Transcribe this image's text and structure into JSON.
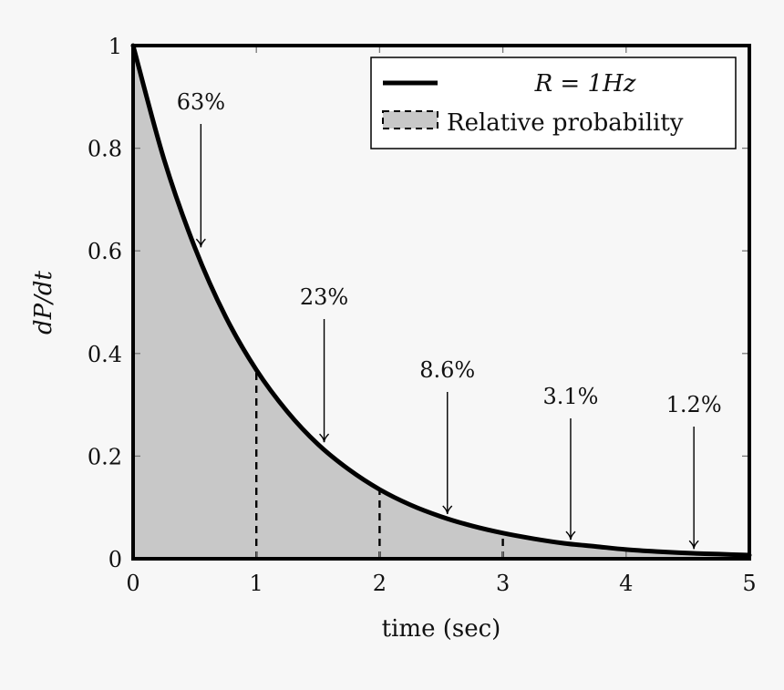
{
  "chart_data": {
    "type": "area",
    "title": "",
    "xlabel": "time (sec)",
    "ylabel": "dP/dt",
    "xlim": [
      0,
      5
    ],
    "ylim": [
      0,
      1
    ],
    "x_ticks": [
      "0",
      "1",
      "2",
      "3",
      "4",
      "5"
    ],
    "y_ticks": [
      "0",
      "0.2",
      "0.4",
      "0.6",
      "0.8",
      "1"
    ],
    "grid": false,
    "legend_position": "top-right",
    "series": [
      {
        "name": "R = 1Hz",
        "style": "solid line",
        "x": [
          0,
          0.25,
          0.5,
          0.75,
          1,
          1.25,
          1.5,
          1.75,
          2,
          2.25,
          2.5,
          2.75,
          3,
          3.25,
          3.5,
          3.75,
          4,
          4.25,
          4.5,
          4.75,
          5
        ],
        "y": [
          1.0,
          0.779,
          0.607,
          0.472,
          0.368,
          0.287,
          0.223,
          0.174,
          0.135,
          0.105,
          0.082,
          0.064,
          0.05,
          0.039,
          0.03,
          0.024,
          0.018,
          0.014,
          0.011,
          0.009,
          0.007
        ]
      },
      {
        "name": "Relative probability",
        "style": "shaded area with dashed boundary",
        "fill_color": "#c8c8c8"
      }
    ],
    "interval_dividers_x": [
      1,
      2,
      3
    ],
    "annotations": [
      {
        "text": "63%",
        "x": 0.55,
        "y": 0.6
      },
      {
        "text": "23%",
        "x": 1.55,
        "y": 0.22
      },
      {
        "text": "8.6%",
        "x": 2.55,
        "y": 0.08
      },
      {
        "text": "3.1%",
        "x": 3.55,
        "y": 0.03
      },
      {
        "text": "1.2%",
        "x": 4.55,
        "y": 0.012
      }
    ],
    "colors": {
      "curve": "#000000",
      "fill": "#c8c8c8",
      "background": "#f7f7f7"
    }
  }
}
